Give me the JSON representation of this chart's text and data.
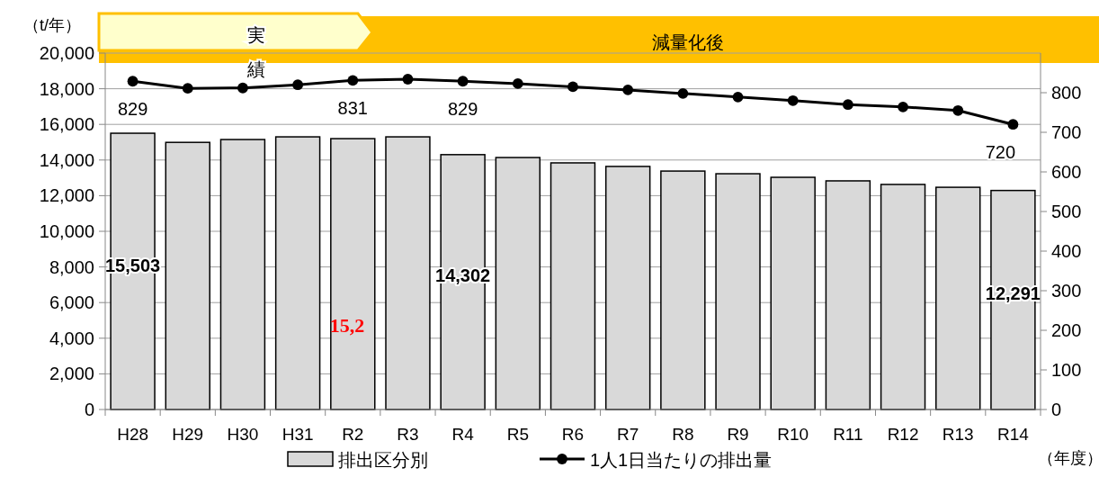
{
  "chart_data": {
    "type": "bar",
    "ylabel": "（t/年）",
    "y2label": null,
    "xlabel": "（年度）",
    "categories": [
      "H28",
      "H29",
      "H30",
      "H31",
      "R2",
      "R3",
      "R4",
      "R5",
      "R6",
      "R7",
      "R8",
      "R9",
      "R10",
      "R11",
      "R12",
      "R13",
      "R14"
    ],
    "series": [
      {
        "name": "排出区分別",
        "color": "#d9d9d9",
        "values": [
          15503,
          14990,
          15150,
          15300,
          15200,
          15300,
          14302,
          14140,
          13840,
          13640,
          13380,
          13230,
          13030,
          12830,
          12630,
          12470,
          12291
        ],
        "value_labels": [
          "15,503",
          null,
          null,
          null,
          null,
          null,
          "14,302",
          null,
          null,
          null,
          null,
          null,
          null,
          null,
          null,
          null,
          "12,291"
        ]
      },
      {
        "type": "line",
        "axis": "y2",
        "name": "1人1日当たりの排出量",
        "color": "#000000",
        "values": [
          829,
          811,
          812,
          820,
          831,
          834,
          829,
          823,
          815,
          807,
          798,
          789,
          780,
          770,
          764,
          755,
          720
        ],
        "value_labels": [
          "829",
          null,
          null,
          null,
          "831",
          null,
          "829",
          null,
          null,
          null,
          null,
          null,
          null,
          null,
          null,
          null,
          "720"
        ]
      }
    ],
    "ylim": [
      0,
      20000
    ],
    "yticks": [
      {
        "value": 0,
        "label": "0"
      },
      {
        "value": 2000,
        "label": "2,000"
      },
      {
        "value": 4000,
        "label": "4,000"
      },
      {
        "value": 6000,
        "label": "6,000"
      },
      {
        "value": 8000,
        "label": "8,000"
      },
      {
        "value": 10000,
        "label": "10,000"
      },
      {
        "value": 12000,
        "label": "12,000"
      },
      {
        "value": 14000,
        "label": "14,000"
      },
      {
        "value": 16000,
        "label": "16,000"
      },
      {
        "value": 18000,
        "label": "18,000"
      },
      {
        "value": 20000,
        "label": "20,000"
      }
    ],
    "y2lim": [
      0,
      900
    ],
    "y2ticks": [
      0,
      100,
      200,
      300,
      400,
      500,
      600,
      700,
      800
    ],
    "grid": "y",
    "legend": "bottom",
    "marker": "circle",
    "annotations": [
      "実績",
      "減量化後",
      "15,2"
    ]
  }
}
